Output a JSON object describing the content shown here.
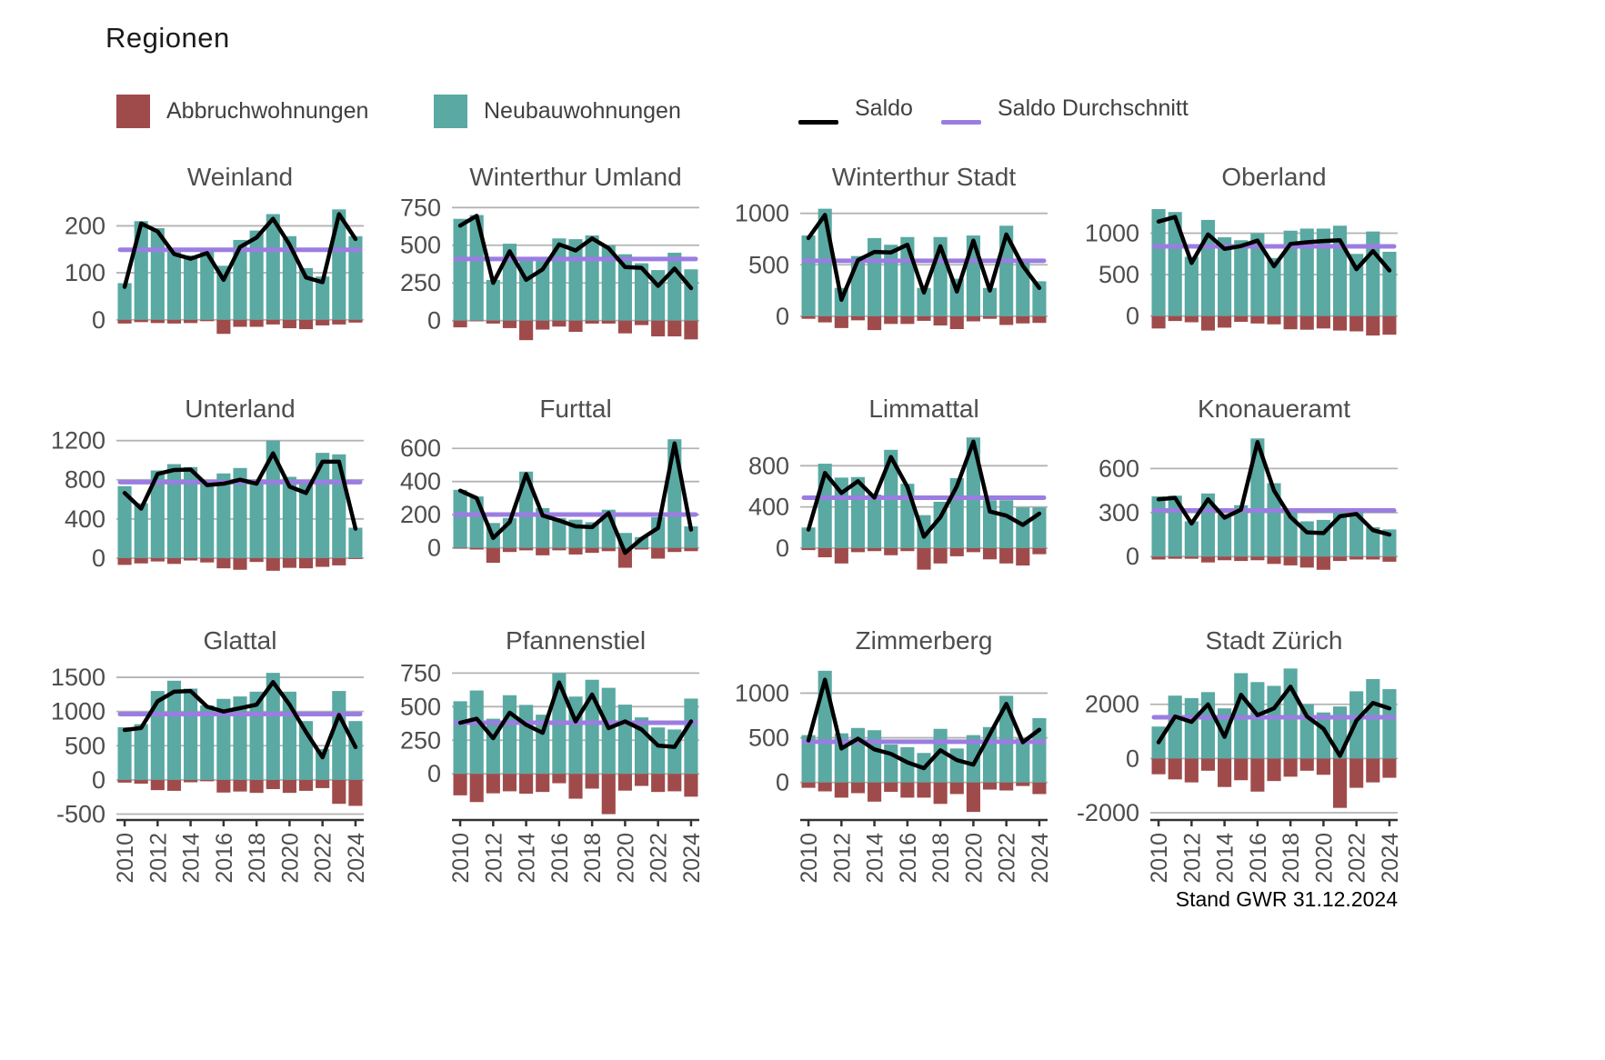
{
  "page": {
    "title": "Regionen",
    "footer": "Stand GWR 31.12.2024"
  },
  "legend": {
    "abbruch": "Abbruchwohnungen",
    "neubau": "Neubauwohnungen",
    "saldo": "Saldo",
    "saldo_avg": "Saldo Durchschnitt"
  },
  "colors": {
    "neubau": "#5aa9a3",
    "abbruch": "#a04b4b",
    "saldo": "#000000",
    "saldo_avg": "#9b7de1",
    "grid": "#b3b3b3",
    "axis_text": "#4d4d4d",
    "title_text": "#4d4d4d"
  },
  "chart_data": {
    "type": "bar",
    "note": "small multiples: bars up = Neubauwohnungen, bars down = Abbruchwohnungen, black line = Saldo, purple line = Saldo Durchschnitt",
    "x": [
      2010,
      2011,
      2012,
      2013,
      2014,
      2015,
      2016,
      2017,
      2018,
      2019,
      2020,
      2021,
      2022,
      2023,
      2024
    ],
    "x_tick_labels": [
      "2010",
      "2012",
      "2014",
      "2016",
      "2018",
      "2020",
      "2022",
      "2024"
    ],
    "grid": true,
    "legend_position": "top",
    "subplots": [
      {
        "title": "Weinland",
        "yticks": [
          0,
          100,
          200
        ],
        "ylim": [
          -45,
          255
        ],
        "neubau": [
          78,
          210,
          195,
          148,
          137,
          145,
          115,
          170,
          190,
          225,
          178,
          110,
          92,
          235,
          178
        ],
        "abbruch": [
          8,
          5,
          7,
          8,
          7,
          3,
          30,
          15,
          15,
          10,
          18,
          20,
          12,
          10,
          6
        ],
        "saldo": [
          70,
          205,
          188,
          140,
          130,
          142,
          85,
          155,
          175,
          215,
          160,
          90,
          80,
          225,
          172
        ],
        "saldo_avg": 149
      },
      {
        "title": "Winterthur Umland",
        "yticks": [
          0,
          250,
          500,
          750
        ],
        "ylim": [
          -135,
          800
        ],
        "neubau": [
          675,
          700,
          270,
          510,
          400,
          400,
          545,
          540,
          565,
          500,
          440,
          380,
          335,
          450,
          340
        ],
        "abbruch": [
          45,
          5,
          20,
          50,
          130,
          60,
          40,
          75,
          20,
          20,
          85,
          30,
          105,
          105,
          125
        ],
        "saldo": [
          630,
          695,
          250,
          460,
          270,
          340,
          505,
          465,
          545,
          480,
          355,
          350,
          230,
          345,
          215
        ],
        "saldo_avg": 409
      },
      {
        "title": "Winterthur Stadt",
        "yticks": [
          0,
          500,
          1000
        ],
        "ylim": [
          -240,
          1130
        ],
        "neubau": [
          785,
          1045,
          275,
          585,
          760,
          695,
          770,
          275,
          770,
          365,
          785,
          275,
          880,
          560,
          340
        ],
        "abbruch": [
          25,
          60,
          115,
          40,
          135,
          75,
          75,
          45,
          90,
          125,
          50,
          25,
          85,
          70,
          65
        ],
        "saldo": [
          760,
          985,
          160,
          545,
          625,
          620,
          695,
          230,
          680,
          240,
          735,
          250,
          795,
          490,
          275
        ],
        "saldo_avg": 539
      },
      {
        "title": "Oberland",
        "yticks": [
          0,
          500,
          1000
        ],
        "ylim": [
          -300,
          1400
        ],
        "neubau": [
          1290,
          1255,
          715,
          1160,
          950,
          915,
          1000,
          700,
          1030,
          1055,
          1055,
          1090,
          750,
          1020,
          775
        ],
        "abbruch": [
          150,
          60,
          75,
          175,
          140,
          70,
          90,
          100,
          160,
          165,
          150,
          175,
          185,
          235,
          225
        ],
        "saldo": [
          1140,
          1195,
          640,
          985,
          810,
          845,
          910,
          600,
          870,
          890,
          905,
          915,
          565,
          785,
          550
        ],
        "saldo_avg": 840
      },
      {
        "title": "Unterland",
        "yticks": [
          0,
          400,
          800,
          1200
        ],
        "ylim": [
          -150,
          1290
        ],
        "neubau": [
          735,
          560,
          895,
          960,
          930,
          790,
          865,
          920,
          800,
          1200,
          830,
          770,
          1075,
          1060,
          310
        ],
        "abbruch": [
          70,
          55,
          35,
          60,
          25,
          45,
          105,
          120,
          40,
          130,
          100,
          105,
          90,
          75,
          10
        ],
        "saldo": [
          665,
          505,
          860,
          900,
          905,
          745,
          760,
          800,
          760,
          1070,
          730,
          665,
          985,
          985,
          300
        ],
        "saldo_avg": 776
      },
      {
        "title": "Furttal",
        "yticks": [
          0,
          200,
          400,
          600
        ],
        "ylim": [
          -150,
          700
        ],
        "neubau": [
          350,
          310,
          150,
          180,
          460,
          240,
          180,
          170,
          155,
          230,
          90,
          65,
          185,
          655,
          130
        ],
        "abbruch": [
          5,
          10,
          90,
          25,
          15,
          45,
          15,
          40,
          30,
          20,
          120,
          10,
          65,
          25,
          20
        ],
        "saldo": [
          345,
          300,
          60,
          155,
          445,
          195,
          165,
          130,
          125,
          210,
          -30,
          55,
          120,
          630,
          110
        ],
        "saldo_avg": 201
      },
      {
        "title": "Limmattal",
        "yticks": [
          0,
          400,
          800
        ],
        "ylim": [
          -240,
          1130
        ],
        "neubau": [
          200,
          820,
          685,
          690,
          520,
          955,
          625,
          320,
          450,
          680,
          1075,
          465,
          465,
          395,
          395
        ],
        "abbruch": [
          20,
          90,
          150,
          40,
          30,
          70,
          30,
          210,
          150,
          80,
          40,
          110,
          150,
          170,
          60
        ],
        "saldo": [
          180,
          730,
          535,
          650,
          490,
          885,
          595,
          110,
          300,
          600,
          1035,
          355,
          315,
          225,
          335
        ],
        "saldo_avg": 489
      },
      {
        "title": "Knonaueramt",
        "yticks": [
          0,
          300,
          600
        ],
        "ylim": [
          -110,
          850
        ],
        "neubau": [
          410,
          415,
          240,
          430,
          290,
          350,
          805,
          500,
          330,
          240,
          250,
          305,
          310,
          200,
          185
        ],
        "abbruch": [
          20,
          15,
          15,
          40,
          25,
          30,
          25,
          50,
          60,
          75,
          90,
          30,
          20,
          20,
          35
        ],
        "saldo": [
          390,
          400,
          225,
          390,
          265,
          320,
          780,
          450,
          270,
          165,
          160,
          275,
          290,
          180,
          150
        ],
        "saldo_avg": 314
      },
      {
        "title": "Glattal",
        "yticks": [
          -500,
          0,
          500,
          1000,
          1500
        ],
        "ylim": [
          -560,
          1700
        ],
        "neubau": [
          770,
          815,
          1300,
          1450,
          1335,
          1090,
          1185,
          1220,
          1290,
          1565,
          1290,
          860,
          450,
          1300,
          860
        ],
        "abbruch": [
          40,
          55,
          150,
          160,
          35,
          20,
          185,
          170,
          190,
          135,
          190,
          160,
          120,
          350,
          380
        ],
        "saldo": [
          730,
          760,
          1150,
          1290,
          1300,
          1070,
          1000,
          1050,
          1100,
          1430,
          1100,
          700,
          330,
          950,
          480
        ],
        "saldo_avg": 963
      },
      {
        "title": "Pfannenstiel",
        "yticks": [
          0,
          250,
          500,
          750
        ],
        "ylim": [
          -330,
          820
        ],
        "neubau": [
          540,
          620,
          410,
          585,
          513,
          440,
          750,
          575,
          700,
          640,
          515,
          420,
          345,
          330,
          560
        ],
        "abbruch": [
          160,
          210,
          145,
          130,
          148,
          135,
          70,
          185,
          110,
          300,
          125,
          90,
          135,
          130,
          170
        ],
        "saldo": [
          380,
          410,
          265,
          455,
          365,
          305,
          680,
          390,
          590,
          340,
          390,
          330,
          210,
          200,
          390
        ],
        "saldo_avg": 380
      },
      {
        "title": "Zimmerberg",
        "yticks": [
          0,
          500,
          1000
        ],
        "ylim": [
          -400,
          1330
        ],
        "neubau": [
          530,
          1250,
          550,
          610,
          585,
          425,
          395,
          330,
          600,
          380,
          530,
          620,
          970,
          490,
          720
        ],
        "abbruch": [
          60,
          100,
          170,
          120,
          215,
          105,
          170,
          170,
          240,
          130,
          330,
          80,
          90,
          40,
          130
        ],
        "saldo": [
          470,
          1150,
          380,
          490,
          370,
          320,
          225,
          160,
          360,
          250,
          200,
          540,
          880,
          450,
          590
        ],
        "saldo_avg": 456
      },
      {
        "title": "Stadt Zürich",
        "yticks": [
          -2000,
          0,
          2000
        ],
        "ylim": [
          -2200,
          3500
        ],
        "neubau": [
          1180,
          2320,
          2230,
          2450,
          1850,
          3150,
          2820,
          2680,
          3320,
          2000,
          1700,
          1920,
          2480,
          2930,
          2560
        ],
        "abbruch": [
          580,
          770,
          880,
          450,
          1050,
          800,
          1220,
          830,
          670,
          450,
          600,
          1820,
          1080,
          880,
          710
        ],
        "saldo": [
          600,
          1550,
          1350,
          2000,
          800,
          2350,
          1600,
          1850,
          2650,
          1550,
          1100,
          100,
          1400,
          2050,
          1850
        ],
        "saldo_avg": 1520
      }
    ]
  }
}
